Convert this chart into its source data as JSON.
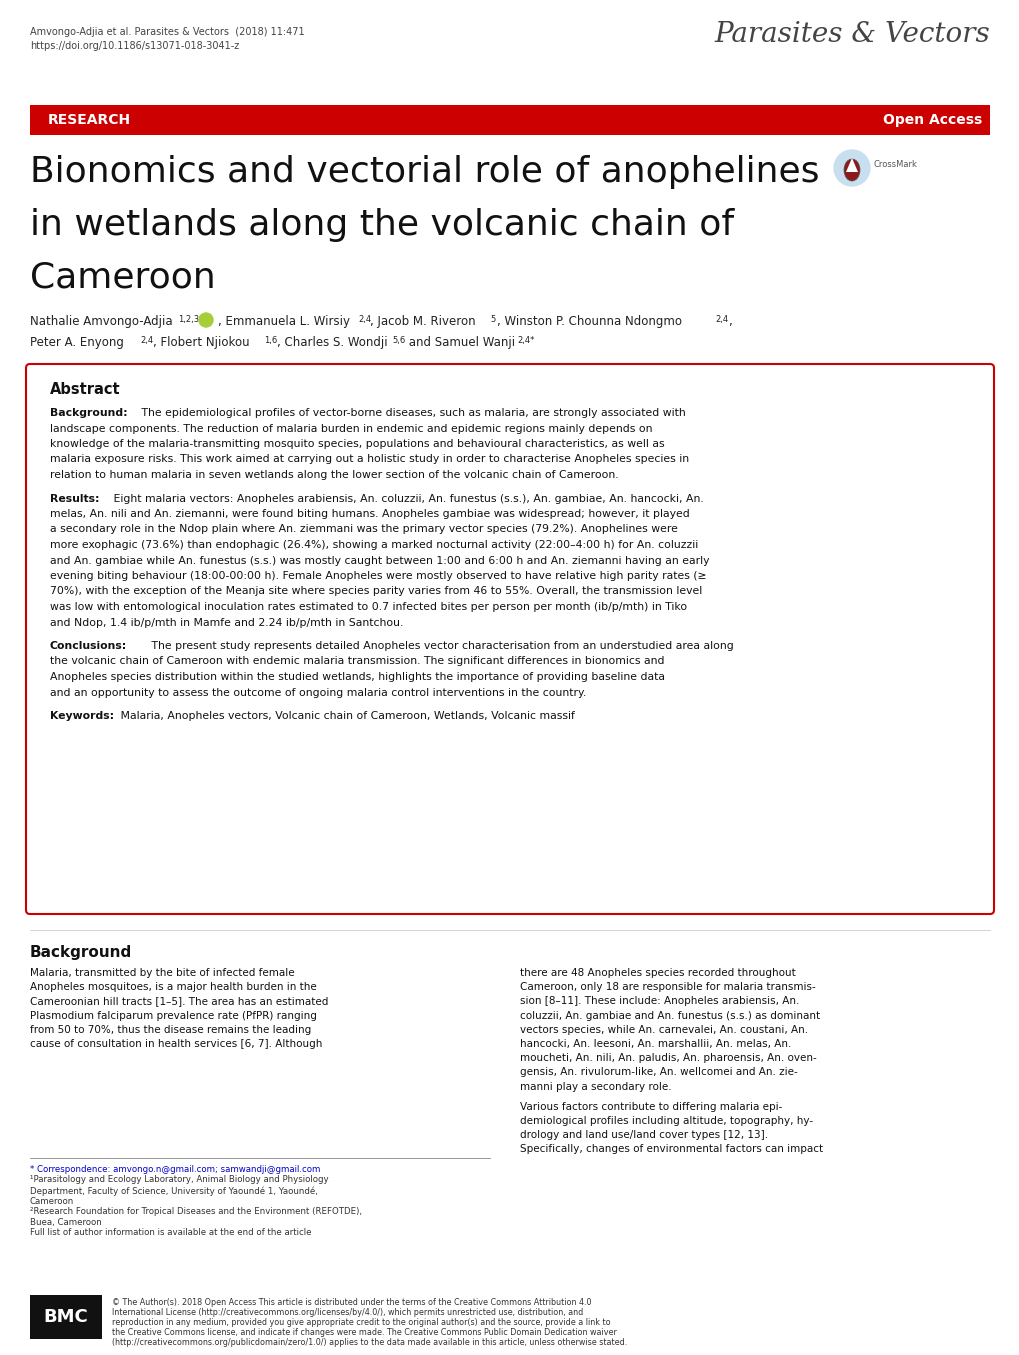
{
  "page_width": 10.2,
  "page_height": 13.55,
  "dpi": 100,
  "bg_color": "#ffffff",
  "header_citation": "Amvongo-Adjia et al. Parasites & Vectors  (2018) 11:471",
  "header_doi": "https://doi.org/10.1186/s13071-018-3041-z",
  "header_journal_text": "Parasites & Vectors",
  "research_banner_color": "#cc0000",
  "research_text": "RESEARCH",
  "open_access_text": "Open Access",
  "main_title_line1": "Bionomics and vectorial role of anophelines",
  "main_title_line2": "in wetlands along the volcanic chain of",
  "main_title_line3": "Cameroon",
  "abstract_title": "Abstract",
  "background_title": "Background",
  "bmc_footer": "© The Author(s). 2018 Open Access This article is distributed under the terms of the Creative Commons Attribution 4.0 International License (http://creativecommons.org/licenses/by/4.0/), which permits unrestricted use, distribution, and reproduction in any medium, provided you give appropriate credit to the original author(s) and the source, provide a link to the Creative Commons license, and indicate if changes were made. The Creative Commons Public Domain Dedication waiver (http://creativecommons.org/publicdomain/zero/1.0/) applies to the data made available in this article, unless otherwise stated."
}
